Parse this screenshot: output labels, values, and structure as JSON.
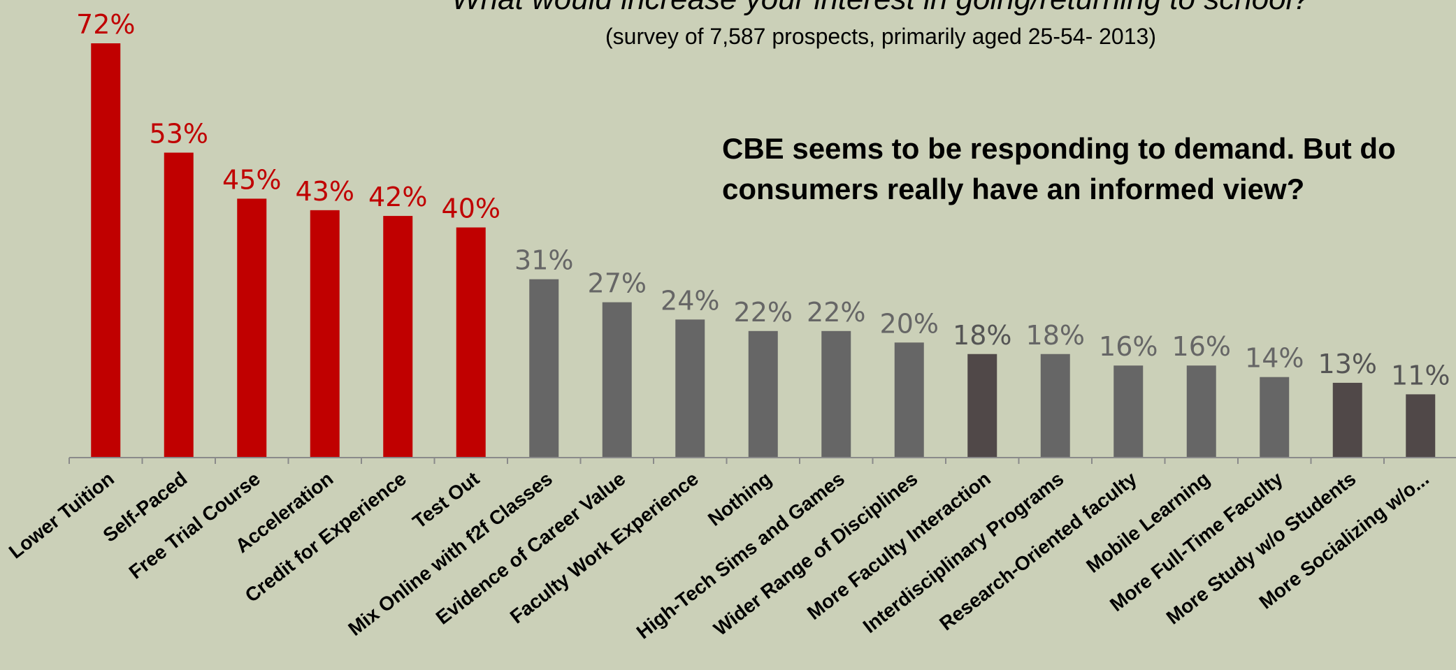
{
  "chart_data": {
    "type": "bar",
    "title": "What would increase your interest in going/returning to school?",
    "subtitle": "(survey of 7,587 prospects, primarily aged 25-54- 2013)",
    "annotation": "CBE seems to be responding to demand. But do consumers really have an informed view?",
    "categories": [
      "Lower Tuition",
      "Self-Paced",
      "Free Trial Course",
      "Acceleration",
      "Credit for Experience",
      "Test Out",
      "Mix Online with f2f Classes",
      "Evidence of Career Value",
      "Faculty Work Experience",
      "Nothing",
      "High-Tech Sims and Games",
      "Wider Range of Disciplines",
      "More Faculty Interaction",
      "Interdisciplinary Programs",
      "Research-Oriented faculty",
      "Mobile Learning",
      "More Full-Time Faculty",
      "More Study w/o Students",
      "More Socializing w/o..."
    ],
    "values": [
      72,
      53,
      45,
      43,
      42,
      40,
      31,
      27,
      24,
      22,
      22,
      20,
      18,
      18,
      16,
      16,
      14,
      13,
      11
    ],
    "data_labels": [
      "72%",
      "53%",
      "45%",
      "43%",
      "42%",
      "40%",
      "31%",
      "27%",
      "24%",
      "22%",
      "22%",
      "20%",
      "18%",
      "18%",
      "16%",
      "16%",
      "14%",
      "13%",
      "11%"
    ],
    "bar_colors": [
      "#c00000",
      "#c00000",
      "#c00000",
      "#c00000",
      "#c00000",
      "#c00000",
      "#666666",
      "#666666",
      "#666666",
      "#666666",
      "#666666",
      "#666666",
      "#504848",
      "#666666",
      "#666666",
      "#666666",
      "#666666",
      "#504848",
      "#504848"
    ],
    "label_colors": [
      "#c00000",
      "#c00000",
      "#c00000",
      "#c00000",
      "#c00000",
      "#c00000",
      "#666666",
      "#666666",
      "#666666",
      "#666666",
      "#666666",
      "#666666",
      "#555555",
      "#666666",
      "#666666",
      "#666666",
      "#666666",
      "#555555",
      "#555555"
    ],
    "ylim": [
      0,
      75
    ],
    "grid": false,
    "legend": "none"
  }
}
